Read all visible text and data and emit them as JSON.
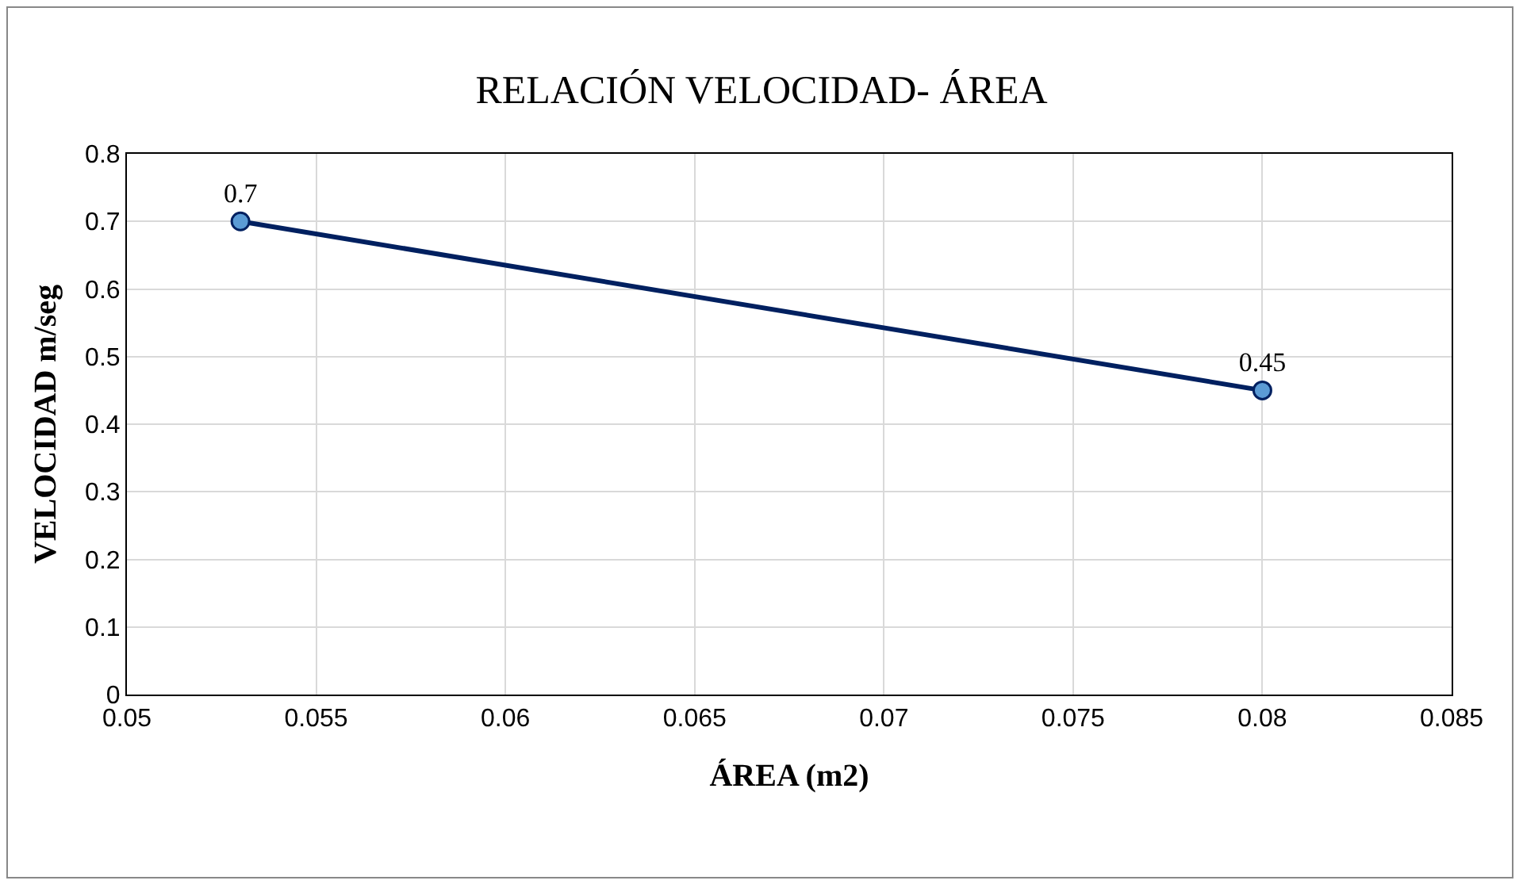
{
  "chart_data": {
    "type": "line",
    "title": "RELACIÓN VELOCIDAD- ÁREA",
    "xlabel": "ÁREA (m2)",
    "ylabel": "VELOCIDAD m/seg",
    "x": [
      0.053,
      0.08
    ],
    "series": [
      {
        "color": "#002060",
        "values": [
          0.7,
          0.45
        ]
      }
    ],
    "xlim": [
      0.05,
      0.085
    ],
    "xticks": [
      0.05,
      0.055,
      0.06,
      0.065,
      0.07,
      0.075,
      0.08,
      0.085
    ],
    "ylim": [
      0,
      0.8
    ],
    "yticks": [
      0,
      0.1,
      0.2,
      0.3,
      0.4,
      0.5,
      0.6,
      0.7,
      0.8
    ],
    "grid": true,
    "marker": "circle",
    "line_style": "solid",
    "data_labels": true
  }
}
